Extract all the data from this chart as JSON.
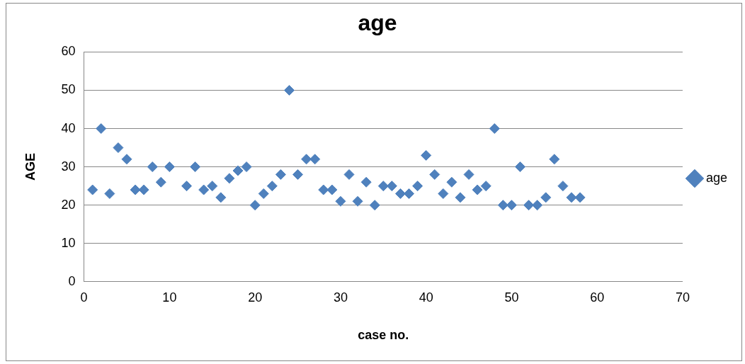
{
  "chart_data": {
    "type": "scatter",
    "title": "age",
    "xlabel": "case no.",
    "ylabel": "AGE",
    "x": [
      1,
      2,
      3,
      4,
      5,
      6,
      7,
      8,
      9,
      10,
      12,
      13,
      14,
      15,
      16,
      17,
      18,
      19,
      20,
      21,
      22,
      23,
      24,
      25,
      26,
      27,
      28,
      29,
      30,
      31,
      32,
      33,
      34,
      35,
      36,
      37,
      38,
      39,
      40,
      41,
      42,
      43,
      44,
      45,
      46,
      47,
      48,
      49,
      50,
      51,
      52,
      53,
      54,
      55,
      56,
      57,
      58
    ],
    "series": [
      {
        "name": "age",
        "color": "#4f81bd",
        "values": [
          24,
          40,
          23,
          35,
          32,
          24,
          24,
          30,
          26,
          30,
          25,
          30,
          24,
          25,
          22,
          27,
          29,
          30,
          20,
          23,
          25,
          28,
          50,
          28,
          32,
          32,
          24,
          24,
          21,
          28,
          21,
          26,
          20,
          25,
          25,
          23,
          23,
          25,
          33,
          28,
          23,
          26,
          22,
          28,
          24,
          25,
          40,
          20,
          20,
          30,
          20,
          20,
          22,
          32,
          25,
          22,
          22
        ]
      }
    ],
    "xlim": [
      0,
      70
    ],
    "xticks": [
      0,
      10,
      20,
      30,
      40,
      50,
      60,
      70
    ],
    "ylim": [
      0,
      60
    ],
    "yticks": [
      0,
      10,
      20,
      30,
      40,
      50,
      60
    ],
    "grid": "y",
    "legend": "right",
    "marker": "diamond"
  }
}
